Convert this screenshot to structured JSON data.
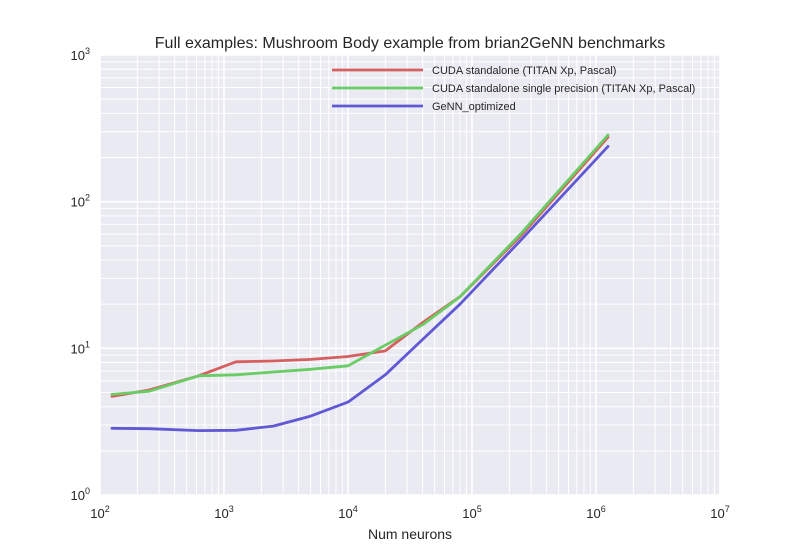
{
  "chart_data": {
    "type": "line",
    "title": "Full examples: Mushroom Body example from brian2GeNN benchmarks",
    "xlabel": "Num neurons",
    "ylabel": "",
    "xscale": "log",
    "yscale": "log",
    "xlim": [
      100,
      10000000
    ],
    "ylim": [
      1,
      1000
    ],
    "grid": true,
    "background": "#eaeaf2",
    "grid_color": "#ffffff",
    "legend_position": "top-right",
    "x_ticks": [
      {
        "value": 100,
        "base": "10",
        "exp": "2"
      },
      {
        "value": 1000,
        "base": "10",
        "exp": "3"
      },
      {
        "value": 10000,
        "base": "10",
        "exp": "4"
      },
      {
        "value": 100000,
        "base": "10",
        "exp": "5"
      },
      {
        "value": 1000000,
        "base": "10",
        "exp": "6"
      },
      {
        "value": 10000000,
        "base": "10",
        "exp": "7"
      }
    ],
    "y_ticks": [
      {
        "value": 1,
        "base": "10",
        "exp": "0"
      },
      {
        "value": 10,
        "base": "10",
        "exp": "1"
      },
      {
        "value": 100,
        "base": "10",
        "exp": "2"
      },
      {
        "value": 1000,
        "base": "10",
        "exp": "3"
      }
    ],
    "series": [
      {
        "name": "CUDA standalone (TITAN Xp, Pascal)",
        "color": "#d65f5f",
        "x": [
          125,
          250,
          625,
          1250,
          2500,
          5000,
          10000,
          20000,
          40000,
          80000,
          250000,
          1250000
        ],
        "y": [
          4.7,
          5.2,
          6.5,
          8.1,
          8.2,
          8.4,
          8.8,
          9.6,
          15.0,
          22.5,
          59.0,
          275.0
        ]
      },
      {
        "name": "CUDA standalone single precision (TITAN Xp, Pascal)",
        "color": "#6acc65",
        "x": [
          125,
          250,
          625,
          1250,
          2500,
          5000,
          10000,
          20000,
          40000,
          80000,
          250000,
          1250000
        ],
        "y": [
          4.85,
          5.1,
          6.5,
          6.6,
          6.9,
          7.2,
          7.6,
          10.5,
          14.5,
          22.5,
          61.0,
          285.0
        ]
      },
      {
        "name": "GeNN_optimized",
        "color": "#6159d4",
        "x": [
          125,
          250,
          625,
          1250,
          2500,
          5000,
          10000,
          20000,
          40000,
          80000,
          250000,
          1250000
        ],
        "y": [
          2.85,
          2.83,
          2.75,
          2.76,
          2.95,
          3.45,
          4.3,
          6.6,
          11.5,
          20.0,
          55.0,
          238.0
        ]
      }
    ]
  }
}
